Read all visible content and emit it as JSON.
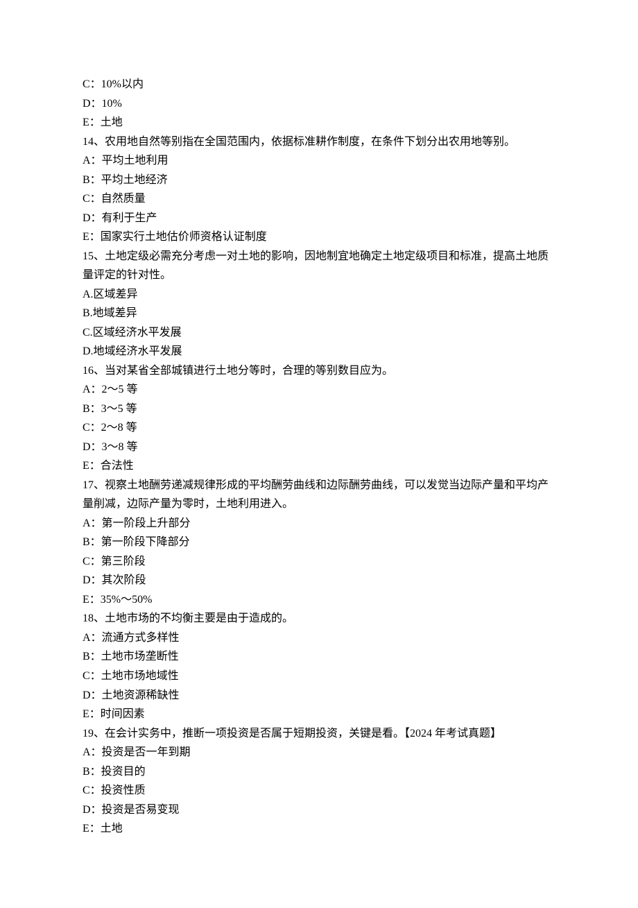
{
  "lines": [
    "C：10%以内",
    "D：10%",
    "E：土地",
    "14、农用地自然等别指在全国范围内，依据标准耕作制度，在条件下划分出农用地等别。",
    "A：平均土地利用",
    "B：平均土地经济",
    "C：自然质量",
    "D：有利于生产",
    "E：国家实行土地估价师资格认证制度",
    "15、土地定级必需充分考虑一对土地的影响，因地制宜地确定土地定级项目和标准，提高土地质量评定的针对性。",
    "A.区域差异",
    "B.地域差异",
    "C.区域经济水平发展",
    "D.地域经济水平发展",
    "16、当对某省全部城镇进行土地分等时，合理的等别数目应为。",
    "A：2～5 等",
    "B：3～5 等",
    "C：2～8 等",
    "D：3～8 等",
    "E：合法性",
    "17、视察土地酬劳递减规律形成的平均酬劳曲线和边际酬劳曲线，可以发觉当边际产量和平均产量削减，边际产量为零时，土地利用进入。",
    "A：第一阶段上升部分",
    "B：第一阶段下降部分",
    "C：第三阶段",
    "D：其次阶段",
    "E：35%～50%",
    "18、土地市场的不均衡主要是由于造成的。",
    "A：流通方式多样性",
    "B：土地市场垄断性",
    "C：土地市场地域性",
    "D：土地资源稀缺性",
    "E：时间因素",
    "19、在会计实务中，推断一项投资是否属于短期投资，关键是看。【2024 年考试真题】",
    "A：投资是否一年到期",
    "B：投资目的",
    "C：投资性质",
    "D：投资是否易变现",
    "E：土地"
  ]
}
